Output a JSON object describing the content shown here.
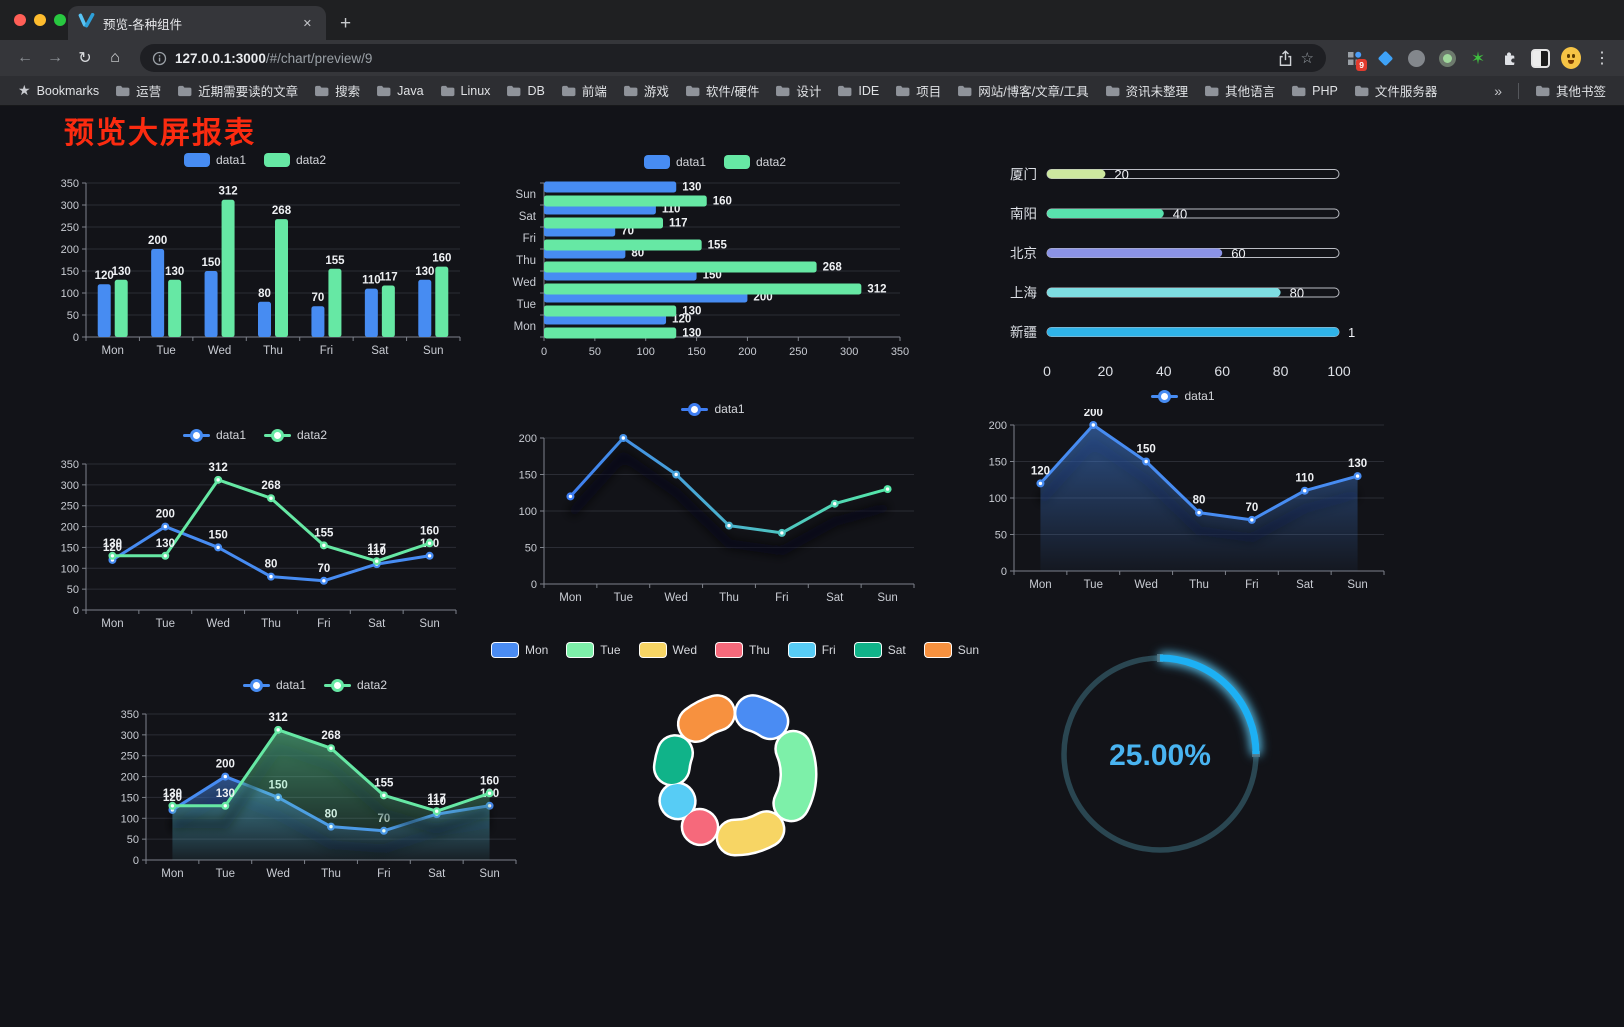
{
  "browser": {
    "tab": {
      "title": "预览-各种组件",
      "close": "✕"
    },
    "new_tab": "+",
    "nav": {
      "back": "←",
      "forward": "→",
      "reload": "↻",
      "home": "⌂"
    },
    "omnibox": {
      "host": "127.0.0.1:3000",
      "path": "/#/chart/preview/9"
    },
    "extension_badge": "9",
    "menu_dots": "⋮",
    "bookmarks_bar": {
      "bookmarks_label": "Bookmarks",
      "folders": [
        "运营",
        "近期需要读的文章",
        "搜索",
        "Java",
        "Linux",
        "DB",
        "前端",
        "游戏",
        "软件/硬件",
        "设计",
        "IDE",
        "项目",
        "网站/博客/文章/工具",
        "资讯未整理",
        "其他语言",
        "PHP",
        "文件服务器"
      ],
      "overflow": "»",
      "other_bookmarks": "其他书签"
    }
  },
  "page": {
    "title": "预览大屏报表"
  },
  "colors": {
    "series1": "#478cf2",
    "series2": "#66e8a4",
    "grid": "#2b2d35",
    "axis": "#7e828b",
    "tick": "#c9ccd3",
    "value_label": "#eef0f3",
    "page_bg": "#121318",
    "title_red": "#fb2b10"
  },
  "chart_data": [
    {
      "id": "grouped-bar",
      "type": "bar",
      "orientation": "vertical",
      "legend": "rect",
      "labels": true,
      "categories": [
        "Mon",
        "Tue",
        "Wed",
        "Thu",
        "Fri",
        "Sat",
        "Sun"
      ],
      "ymax": 350,
      "ystep": 50,
      "series": [
        {
          "name": "data1",
          "color": "#478cf2",
          "values": [
            120,
            200,
            150,
            80,
            70,
            110,
            130
          ]
        },
        {
          "name": "data2",
          "color": "#66e8a4",
          "values": [
            130,
            130,
            312,
            268,
            155,
            117,
            160
          ]
        }
      ]
    },
    {
      "id": "grouped-bar-horizontal",
      "type": "bar",
      "orientation": "horizontal",
      "legend": "rect",
      "labels": true,
      "categories": [
        "Mon",
        "Tue",
        "Wed",
        "Thu",
        "Fri",
        "Sat",
        "Sun"
      ],
      "xmax": 350,
      "xstep": 50,
      "series": [
        {
          "name": "data1",
          "color": "#478cf2",
          "values": [
            120,
            200,
            150,
            80,
            70,
            110,
            130
          ]
        },
        {
          "name": "data2",
          "color": "#66e8a4",
          "values": [
            130,
            130,
            312,
            268,
            155,
            117,
            160
          ]
        }
      ]
    },
    {
      "id": "city-progress",
      "type": "progress",
      "max": 100,
      "ticks": [
        0,
        20,
        40,
        60,
        80,
        100
      ],
      "items": [
        {
          "label": "厦门",
          "value": 20,
          "color": "#cde89f"
        },
        {
          "label": "南阳",
          "value": 40,
          "color": "#59e2ae"
        },
        {
          "label": "北京",
          "value": 60,
          "color": "#8b93e6"
        },
        {
          "label": "上海",
          "value": 80,
          "color": "#7edde2"
        },
        {
          "label": "新疆",
          "value": 100,
          "color": "#2fb3e8"
        }
      ]
    },
    {
      "id": "line-two-series",
      "type": "line",
      "legend": "line",
      "labels": true,
      "categories": [
        "Mon",
        "Tue",
        "Wed",
        "Thu",
        "Fri",
        "Sat",
        "Sun"
      ],
      "ymax": 350,
      "ystep": 50,
      "series": [
        {
          "name": "data1",
          "color": "#478cf2",
          "values": [
            120,
            200,
            150,
            80,
            70,
            110,
            130
          ]
        },
        {
          "name": "data2",
          "color": "#66e8a4",
          "values": [
            130,
            130,
            312,
            268,
            155,
            117,
            160
          ]
        }
      ]
    },
    {
      "id": "gradient-line",
      "type": "line",
      "legend": "line",
      "labels": false,
      "shadow": true,
      "categories": [
        "Mon",
        "Tue",
        "Wed",
        "Thu",
        "Fri",
        "Sat",
        "Sun"
      ],
      "ymax": 200,
      "ystep": 50,
      "series": [
        {
          "name": "data1",
          "color": "#3f7ef2",
          "color2": "#55e8a8",
          "values": [
            120,
            200,
            150,
            80,
            70,
            110,
            130
          ]
        }
      ]
    },
    {
      "id": "area-line",
      "type": "area",
      "legend": "line",
      "labels": true,
      "shadow": true,
      "categories": [
        "Mon",
        "Tue",
        "Wed",
        "Thu",
        "Fri",
        "Sat",
        "Sun"
      ],
      "ymax": 200,
      "ystep": 50,
      "series": [
        {
          "name": "data1",
          "color": "#478cf2",
          "values": [
            120,
            200,
            150,
            80,
            70,
            110,
            130
          ]
        }
      ]
    },
    {
      "id": "area-two-series",
      "type": "area",
      "legend": "line",
      "labels": true,
      "shadow": true,
      "categories": [
        "Mon",
        "Tue",
        "Wed",
        "Thu",
        "Fri",
        "Sat",
        "Sun"
      ],
      "ymax": 350,
      "ystep": 50,
      "series": [
        {
          "name": "data1",
          "color": "#478cf2",
          "values": [
            120,
            200,
            150,
            80,
            70,
            110,
            130
          ]
        },
        {
          "name": "data2",
          "color": "#66e8a4",
          "values": [
            130,
            130,
            312,
            268,
            155,
            117,
            160
          ]
        }
      ]
    },
    {
      "id": "donut",
      "type": "pie",
      "legend": "pie",
      "items": [
        {
          "label": "Mon",
          "value": 120,
          "color": "#4a8cf3"
        },
        {
          "label": "Tue",
          "value": 200,
          "color": "#7df0a9"
        },
        {
          "label": "Wed",
          "value": 150,
          "color": "#f7d564"
        },
        {
          "label": "Thu",
          "value": 80,
          "color": "#f6697b"
        },
        {
          "label": "Fri",
          "value": 70,
          "color": "#57ccf5"
        },
        {
          "label": "Sat",
          "value": 110,
          "color": "#10b389"
        },
        {
          "label": "Sun",
          "value": 130,
          "color": "#f7913f"
        }
      ]
    },
    {
      "id": "gauge",
      "type": "gauge",
      "value_label": "25.00%",
      "percent": 25,
      "color": "#1db0f4",
      "glow": "#5fd2ff",
      "track": "#2a4651",
      "text_color": "#49b4f1"
    }
  ]
}
